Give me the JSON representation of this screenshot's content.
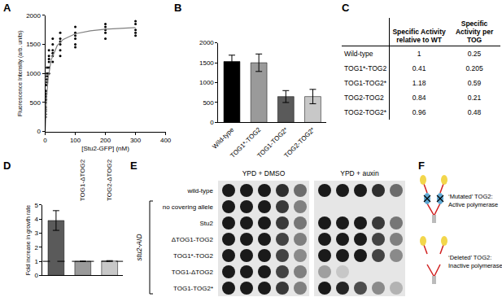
{
  "panels": [
    "A",
    "B",
    "C",
    "D",
    "E",
    "F"
  ],
  "chart_data": [
    {
      "panel": "A",
      "type": "scatter",
      "x_label": "[Stu2-GFP] (nM)",
      "y_label": "Fluorescence Intensity (arb. units)",
      "xlim": [
        0,
        400
      ],
      "xticks": [
        0,
        100,
        200,
        300,
        400
      ],
      "ylim": [
        0,
        2000
      ],
      "yticks": [
        0,
        500,
        1000,
        1500,
        2000
      ],
      "grid": false,
      "series": [
        {
          "type": "scatter",
          "marker": "circle",
          "color": "#000000",
          "x": [
            1.5,
            1.5,
            1.5,
            1.5,
            1.5,
            1.5,
            3,
            3,
            3,
            3,
            3,
            6,
            6,
            6,
            6,
            6,
            12.5,
            12.5,
            12.5,
            12.5,
            12.5,
            12.5,
            25,
            25,
            25,
            25,
            25,
            25,
            50,
            50,
            50,
            50,
            50,
            50,
            100,
            100,
            100,
            100,
            100,
            100,
            200,
            200,
            200,
            200,
            200,
            300,
            300,
            300,
            300,
            300
          ],
          "values": [
            300,
            380,
            420,
            500,
            250,
            350,
            600,
            700,
            650,
            800,
            550,
            900,
            1000,
            1100,
            850,
            950,
            1100,
            1200,
            1300,
            1250,
            1400,
            1000,
            1300,
            1400,
            1500,
            1350,
            1600,
            1200,
            1400,
            1500,
            1600,
            1550,
            1700,
            1300,
            1500,
            1600,
            1700,
            1800,
            1650,
            1450,
            1600,
            1750,
            1800,
            1850,
            1700,
            1650,
            1750,
            1850,
            1900,
            1700
          ]
        },
        {
          "type": "line",
          "color": "#808080",
          "x": [
            0,
            5,
            10,
            20,
            40,
            60,
            100,
            150,
            200,
            250,
            300
          ],
          "values": [
            0,
            617,
            925,
            1233,
            1480,
            1586,
            1682,
            1734,
            1762,
            1779,
            1790
          ]
        }
      ]
    },
    {
      "panel": "B",
      "type": "bar",
      "categories": [
        "Wild-type",
        "TOG1*-TOG2",
        "TOG1-TOG2*",
        "TOG2-TOG2*"
      ],
      "values": [
        1530,
        1500,
        650,
        650
      ],
      "errors": [
        160,
        220,
        150,
        180
      ],
      "colors": [
        "#000000",
        "#9a9a9a",
        "#5a5a5a",
        "#c8c8c8"
      ],
      "ylim": [
        0,
        2000
      ],
      "yticks": [
        0,
        500,
        1000,
        1500,
        2000
      ],
      "grid": false
    },
    {
      "panel": "D",
      "type": "bar",
      "categories": [
        null,
        "TOG1-ΔTOG2",
        "TOG2-ΔTOG2"
      ],
      "values": [
        3.9,
        1.0,
        1.02
      ],
      "errors": [
        0.7,
        0.02,
        0.03
      ],
      "colors": [
        "#5a5a5a",
        "#9a9a9a",
        "#c8c8c8"
      ],
      "y_label": "Fold increase in growth rate",
      "ylim": [
        0,
        5
      ],
      "yticks": [
        0,
        1,
        2,
        3,
        4,
        5
      ],
      "reference_line": 1,
      "grid": false,
      "tick_labels": "y"
    }
  ],
  "table": {
    "panel": "C",
    "header": [
      "Specific Activity relative to WT",
      "Specific Activity per TOG"
    ],
    "rows": [
      [
        "Wild-type",
        "1",
        "0.25"
      ],
      [
        "TOG1*-TOG2",
        "0.41",
        "0.205"
      ],
      [
        "TOG1-TOG2*",
        "1.18",
        "0.59"
      ],
      [
        "TOG2-TOG2",
        "0.84",
        "0.21"
      ],
      [
        "TOG2-TOG2*",
        "0.96",
        "0.48"
      ]
    ]
  },
  "spot_assay": {
    "panel": "E",
    "columns": [
      "YPD + DMSO",
      "YPD + auxin"
    ],
    "group_label": "stu2-AID",
    "rows": [
      {
        "label": "wild-type",
        "in_group": false,
        "growth": [
          [
            1,
            1,
            1,
            0.9,
            0.6
          ],
          [
            1,
            1,
            1,
            0.9,
            0.6
          ]
        ]
      },
      {
        "label": "no covering allele",
        "in_group": true,
        "growth": [
          [
            1,
            1,
            1,
            0.85,
            0.5
          ],
          [
            0,
            0,
            0,
            0,
            0
          ]
        ]
      },
      {
        "label": "Stu2",
        "in_group": true,
        "growth": [
          [
            1,
            1,
            1,
            0.85,
            0.55
          ],
          [
            1,
            1,
            1,
            0.85,
            0.55
          ]
        ]
      },
      {
        "label": "ΔTOG1-TOG2",
        "in_group": true,
        "growth": [
          [
            1,
            1,
            1,
            0.8,
            0.5
          ],
          [
            1,
            1,
            1,
            0.8,
            0.5
          ]
        ]
      },
      {
        "label": "TOG1*-TOG2",
        "in_group": true,
        "growth": [
          [
            1,
            1,
            1,
            0.8,
            0.45
          ],
          [
            1,
            1,
            1,
            0.8,
            0.45
          ]
        ]
      },
      {
        "label": "TOG1-ΔTOG2",
        "in_group": true,
        "growth": [
          [
            1,
            1,
            1,
            0.8,
            0.5
          ],
          [
            0.35,
            0.15,
            0,
            0,
            0
          ]
        ]
      },
      {
        "label": "TOG1-TOG2*",
        "in_group": true,
        "growth": [
          [
            1,
            1,
            1,
            0.85,
            0.5
          ],
          [
            1,
            0.95,
            0.75,
            0.45,
            0.25
          ]
        ]
      }
    ]
  },
  "diagram": {
    "panel": "F",
    "items": [
      {
        "lines": [
          "‘Mutated’ TOG2:",
          "Active polymerase"
        ],
        "tog2": "mutated"
      },
      {
        "lines": [
          "‘Deleted’ TOG2:",
          "Inactive polymerase"
        ],
        "tog2": "deleted"
      }
    ]
  }
}
